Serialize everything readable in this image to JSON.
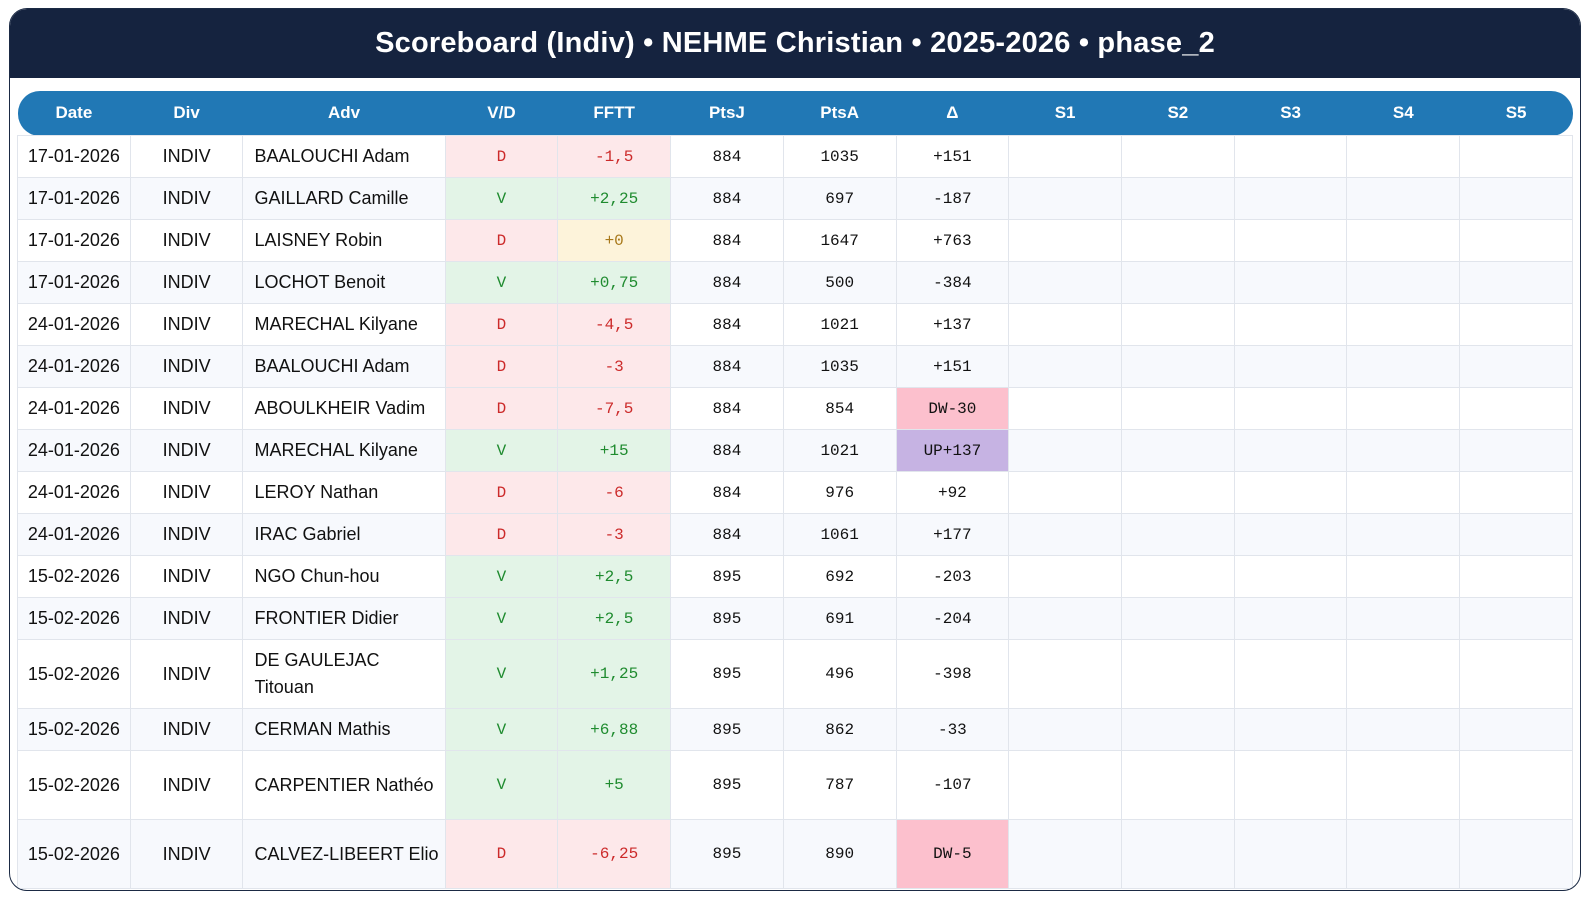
{
  "title": "Scoreboard (Indiv) • NEHME Christian • 2025-2026 • phase_2",
  "columns": [
    "Date",
    "Div",
    "Adv",
    "V/D",
    "FFTT",
    "PtsJ",
    "PtsA",
    "Δ",
    "S1",
    "S2",
    "S3",
    "S4",
    "S5"
  ],
  "colors": {
    "title_bg": "#15233f",
    "header_bg": "#2178b5",
    "win_bg": "#e3f4e7",
    "win_text": "#1f8b2f",
    "loss_bg": "#fde8ea",
    "loss_text": "#cc2a2a",
    "zero_bg": "#fdf3da",
    "down_bg": "#fcc0cd",
    "up_bg": "#c6b3e3"
  },
  "rows": [
    {
      "date": "17-01-2026",
      "div": "INDIV",
      "adv": "BAALOUCHI Adam",
      "vd": "D",
      "fftt": "-1,5",
      "ptsj": "884",
      "ptsa": "1035",
      "delta": "+151",
      "sets": [
        "",
        "",
        "",
        "",
        ""
      ]
    },
    {
      "date": "17-01-2026",
      "div": "INDIV",
      "adv": "GAILLARD Camille",
      "vd": "V",
      "fftt": "+2,25",
      "ptsj": "884",
      "ptsa": "697",
      "delta": "-187",
      "sets": [
        "",
        "",
        "",
        "",
        ""
      ]
    },
    {
      "date": "17-01-2026",
      "div": "INDIV",
      "adv": "LAISNEY Robin",
      "vd": "D",
      "fftt": "+0",
      "ptsj": "884",
      "ptsa": "1647",
      "delta": "+763",
      "sets": [
        "",
        "",
        "",
        "",
        ""
      ]
    },
    {
      "date": "17-01-2026",
      "div": "INDIV",
      "adv": "LOCHOT Benoit",
      "vd": "V",
      "fftt": "+0,75",
      "ptsj": "884",
      "ptsa": "500",
      "delta": "-384",
      "sets": [
        "",
        "",
        "",
        "",
        ""
      ]
    },
    {
      "date": "24-01-2026",
      "div": "INDIV",
      "adv": "MARECHAL Kilyane",
      "vd": "D",
      "fftt": "-4,5",
      "ptsj": "884",
      "ptsa": "1021",
      "delta": "+137",
      "sets": [
        "",
        "",
        "",
        "",
        ""
      ]
    },
    {
      "date": "24-01-2026",
      "div": "INDIV",
      "adv": "BAALOUCHI Adam",
      "vd": "D",
      "fftt": "-3",
      "ptsj": "884",
      "ptsa": "1035",
      "delta": "+151",
      "sets": [
        "",
        "",
        "",
        "",
        ""
      ]
    },
    {
      "date": "24-01-2026",
      "div": "INDIV",
      "adv": "ABOULKHEIR Vadim",
      "vd": "D",
      "fftt": "-7,5",
      "ptsj": "884",
      "ptsa": "854",
      "delta": "DW-30",
      "sets": [
        "",
        "",
        "",
        "",
        ""
      ]
    },
    {
      "date": "24-01-2026",
      "div": "INDIV",
      "adv": "MARECHAL Kilyane",
      "vd": "V",
      "fftt": "+15",
      "ptsj": "884",
      "ptsa": "1021",
      "delta": "UP+137",
      "sets": [
        "",
        "",
        "",
        "",
        ""
      ]
    },
    {
      "date": "24-01-2026",
      "div": "INDIV",
      "adv": "LEROY Nathan",
      "vd": "D",
      "fftt": "-6",
      "ptsj": "884",
      "ptsa": "976",
      "delta": "+92",
      "sets": [
        "",
        "",
        "",
        "",
        ""
      ]
    },
    {
      "date": "24-01-2026",
      "div": "INDIV",
      "adv": "IRAC Gabriel",
      "vd": "D",
      "fftt": "-3",
      "ptsj": "884",
      "ptsa": "1061",
      "delta": "+177",
      "sets": [
        "",
        "",
        "",
        "",
        ""
      ]
    },
    {
      "date": "15-02-2026",
      "div": "INDIV",
      "adv": "NGO Chun-hou",
      "vd": "V",
      "fftt": "+2,5",
      "ptsj": "895",
      "ptsa": "692",
      "delta": "-203",
      "sets": [
        "",
        "",
        "",
        "",
        ""
      ]
    },
    {
      "date": "15-02-2026",
      "div": "INDIV",
      "adv": "FRONTIER Didier",
      "vd": "V",
      "fftt": "+2,5",
      "ptsj": "895",
      "ptsa": "691",
      "delta": "-204",
      "sets": [
        "",
        "",
        "",
        "",
        ""
      ]
    },
    {
      "date": "15-02-2026",
      "div": "INDIV",
      "adv": "DE GAULEJAC Titouan",
      "vd": "V",
      "fftt": "+1,25",
      "ptsj": "895",
      "ptsa": "496",
      "delta": "-398",
      "sets": [
        "",
        "",
        "",
        "",
        ""
      ]
    },
    {
      "date": "15-02-2026",
      "div": "INDIV",
      "adv": "CERMAN Mathis",
      "vd": "V",
      "fftt": "+6,88",
      "ptsj": "895",
      "ptsa": "862",
      "delta": "-33",
      "sets": [
        "",
        "",
        "",
        "",
        ""
      ]
    },
    {
      "date": "15-02-2026",
      "div": "INDIV",
      "adv": "CARPENTIER Nathéo",
      "vd": "V",
      "fftt": "+5",
      "ptsj": "895",
      "ptsa": "787",
      "delta": "-107",
      "sets": [
        "",
        "",
        "",
        "",
        ""
      ]
    },
    {
      "date": "15-02-2026",
      "div": "INDIV",
      "adv": "CALVEZ-LIBEERT Elio",
      "vd": "D",
      "fftt": "-6,25",
      "ptsj": "895",
      "ptsa": "890",
      "delta": "DW-5",
      "sets": [
        "",
        "",
        "",
        "",
        ""
      ]
    }
  ]
}
